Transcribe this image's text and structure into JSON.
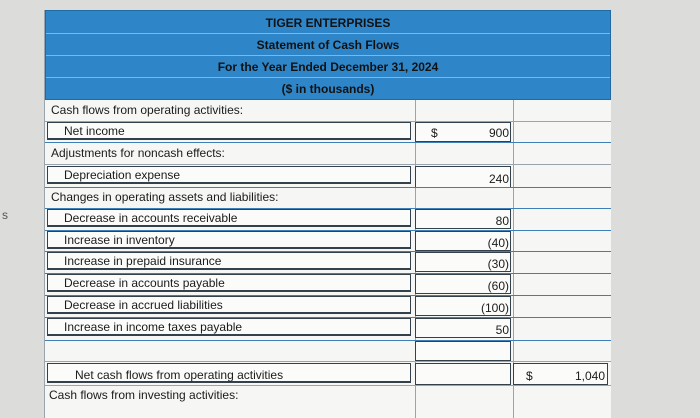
{
  "statement": {
    "company": "TIGER ENTERPRISES",
    "title": "Statement of Cash Flows",
    "period": "For the Year Ended December 31, 2024",
    "units": "($ in thousands)"
  },
  "rows": {
    "operating_header": "Cash flows from operating activities:",
    "net_income": {
      "label": "Net income",
      "dollar": "$",
      "value": "900"
    },
    "adjustments_header": "Adjustments for noncash effects:",
    "depreciation": {
      "label": "Depreciation expense",
      "value": "240"
    },
    "changes_header": "Changes in operating assets and liabilities:",
    "receivable": {
      "label": "Decrease in accounts receivable",
      "value": "80"
    },
    "inventory": {
      "label": "Increase in inventory",
      "value": "(40)"
    },
    "prepaid": {
      "label": "Increase in prepaid insurance",
      "value": "(30)"
    },
    "payable": {
      "label": "Decrease in accounts payable",
      "value": "(60)"
    },
    "accrued": {
      "label": "Decrease in accrued liabilities",
      "value": "(100)"
    },
    "taxes": {
      "label": "Increase in income taxes payable",
      "value": "50"
    },
    "net_operating": {
      "label": "Net cash flows from operating activities",
      "dollar": "$",
      "value": "1,040"
    },
    "investing_header": "Cash flows from investing activities:"
  },
  "edge_fragment": "s",
  "colors": {
    "header_blue": "#2e86c9",
    "border_dark": "#33414d"
  }
}
